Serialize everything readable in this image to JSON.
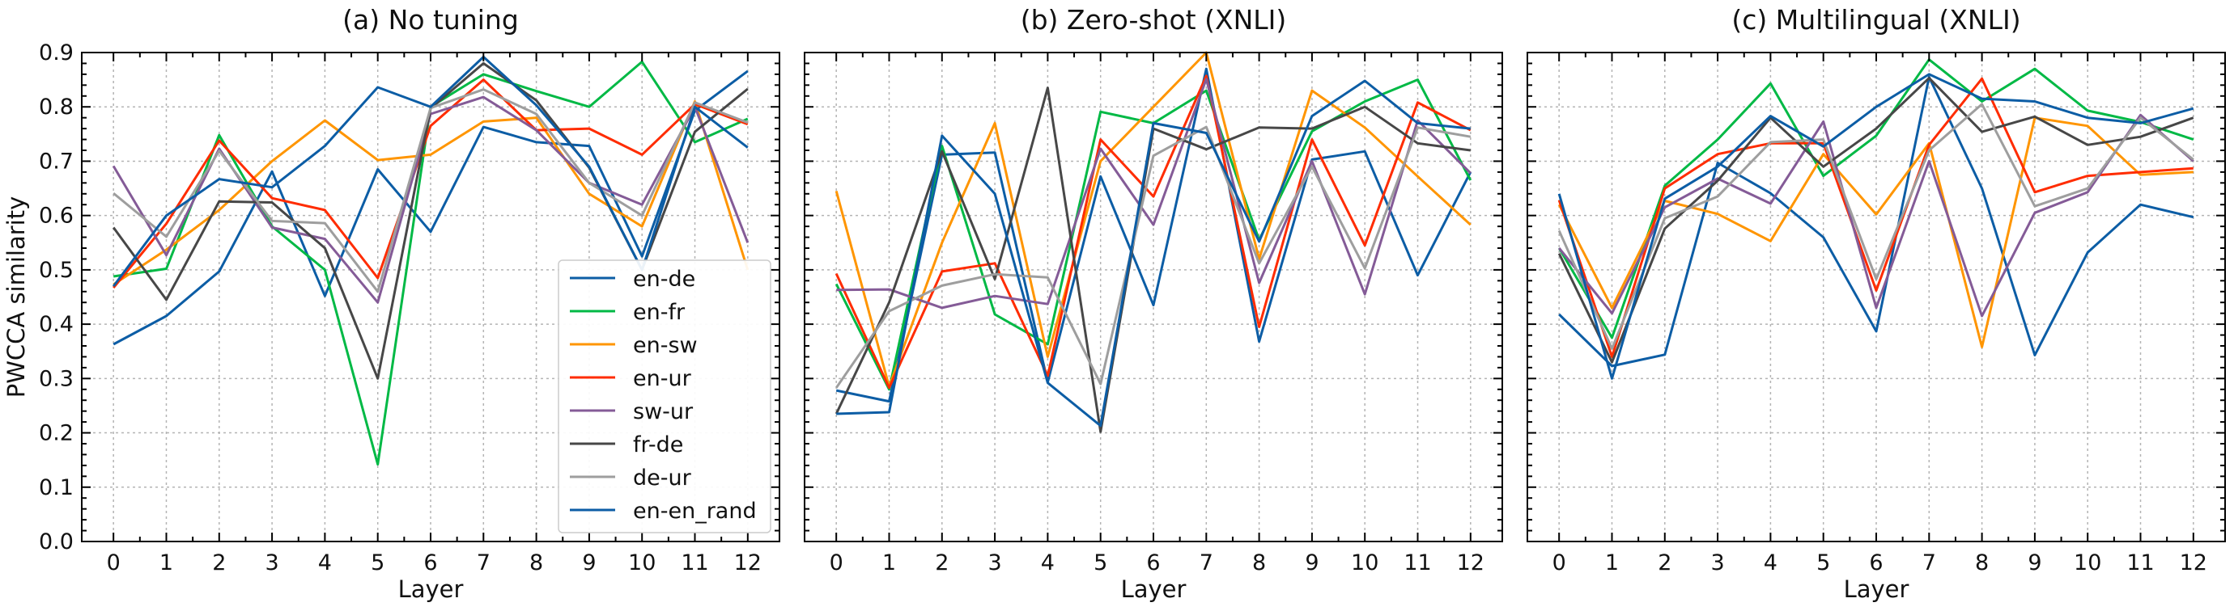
{
  "chart_data": [
    {
      "type": "line",
      "title": "(a) No tuning",
      "xlabel": "Layer",
      "ylabel": "PWCCA similarity",
      "x": [
        0,
        1,
        2,
        3,
        4,
        5,
        6,
        7,
        8,
        9,
        10,
        11,
        12
      ],
      "ylim": [
        0,
        0.9
      ],
      "yticks": [
        "0.0",
        "0.1",
        "0.2",
        "0.3",
        "0.4",
        "0.5",
        "0.6",
        "0.7",
        "0.8",
        "0.9"
      ],
      "grid": true,
      "legend": "lower-right",
      "series": [
        {
          "name": "en-de",
          "color": "#0C5DA5",
          "values": [
            0.363,
            0.415,
            0.497,
            0.681,
            0.452,
            0.685,
            0.57,
            0.763,
            0.735,
            0.728,
            0.525,
            0.793,
            0.866
          ]
        },
        {
          "name": "en-fr",
          "color": "#00B945",
          "values": [
            0.488,
            0.502,
            0.748,
            0.58,
            0.5,
            0.142,
            0.8,
            0.86,
            0.829,
            0.8,
            0.883,
            0.735,
            0.778
          ]
        },
        {
          "name": "en-sw",
          "color": "#FF9500",
          "values": [
            0.473,
            0.537,
            0.61,
            0.7,
            0.775,
            0.702,
            0.712,
            0.773,
            0.78,
            0.64,
            0.58,
            0.81,
            0.5
          ]
        },
        {
          "name": "en-ur",
          "color": "#FF2C00",
          "values": [
            0.467,
            0.585,
            0.738,
            0.632,
            0.61,
            0.485,
            0.765,
            0.85,
            0.757,
            0.76,
            0.712,
            0.805,
            0.768
          ]
        },
        {
          "name": "sw-ur",
          "color": "#845B97",
          "values": [
            0.691,
            0.527,
            0.723,
            0.578,
            0.557,
            0.44,
            0.787,
            0.818,
            0.757,
            0.66,
            0.62,
            0.8,
            0.55
          ]
        },
        {
          "name": "fr-de",
          "color": "#474747",
          "values": [
            0.578,
            0.445,
            0.626,
            0.624,
            0.54,
            0.3,
            0.797,
            0.88,
            0.812,
            0.688,
            0.5,
            0.754,
            0.833
          ]
        },
        {
          "name": "de-ur",
          "color": "#9E9E9E",
          "values": [
            0.641,
            0.561,
            0.719,
            0.59,
            0.586,
            0.46,
            0.798,
            0.832,
            0.787,
            0.66,
            0.6,
            0.808,
            0.771
          ]
        },
        {
          "name": "en-en_rand",
          "color": "#0C5DA5",
          "values": [
            0.47,
            0.6,
            0.667,
            0.652,
            0.728,
            0.836,
            0.8,
            0.892,
            0.803,
            0.69,
            0.5,
            0.8,
            0.725
          ]
        }
      ]
    },
    {
      "type": "line",
      "title": "(b) Zero-shot (XNLI)",
      "xlabel": "Layer",
      "ylabel": "",
      "x": [
        0,
        1,
        2,
        3,
        4,
        5,
        6,
        7,
        8,
        9,
        10,
        11,
        12
      ],
      "ylim": [
        0,
        0.9
      ],
      "yticks": [],
      "grid": true,
      "series": [
        {
          "name": "en-de",
          "color": "#0C5DA5",
          "values": [
            0.278,
            0.258,
            0.712,
            0.716,
            0.293,
            0.672,
            0.435,
            0.87,
            0.368,
            0.703,
            0.718,
            0.49,
            0.68
          ]
        },
        {
          "name": "en-fr",
          "color": "#00B945",
          "values": [
            0.474,
            0.28,
            0.728,
            0.418,
            0.363,
            0.791,
            0.77,
            0.83,
            0.555,
            0.755,
            0.81,
            0.85,
            0.665
          ]
        },
        {
          "name": "en-sw",
          "color": "#FF9500",
          "values": [
            0.645,
            0.285,
            0.55,
            0.77,
            0.34,
            0.7,
            0.8,
            0.9,
            0.52,
            0.83,
            0.762,
            0.672,
            0.583
          ]
        },
        {
          "name": "en-ur",
          "color": "#FF2C00",
          "values": [
            0.493,
            0.283,
            0.497,
            0.512,
            0.305,
            0.74,
            0.635,
            0.857,
            0.395,
            0.74,
            0.545,
            0.808,
            0.757
          ]
        },
        {
          "name": "sw-ur",
          "color": "#845B97",
          "values": [
            0.463,
            0.464,
            0.43,
            0.452,
            0.437,
            0.723,
            0.583,
            0.851,
            0.476,
            0.7,
            0.455,
            0.775,
            0.678
          ]
        },
        {
          "name": "fr-de",
          "color": "#474747",
          "values": [
            0.235,
            0.44,
            0.718,
            0.483,
            0.835,
            0.202,
            0.76,
            0.722,
            0.762,
            0.76,
            0.8,
            0.733,
            0.72
          ]
        },
        {
          "name": "de-ur",
          "color": "#9E9E9E",
          "values": [
            0.283,
            0.424,
            0.471,
            0.492,
            0.486,
            0.29,
            0.71,
            0.763,
            0.512,
            0.69,
            0.503,
            0.762,
            0.745
          ]
        },
        {
          "name": "en-en_rand",
          "color": "#0C5DA5",
          "values": [
            0.235,
            0.238,
            0.747,
            0.64,
            0.292,
            0.213,
            0.77,
            0.752,
            0.552,
            0.783,
            0.848,
            0.77,
            0.76
          ]
        }
      ]
    },
    {
      "type": "line",
      "title": "(c) Multilingual (XNLI)",
      "xlabel": "Layer",
      "ylabel": "",
      "x": [
        0,
        1,
        2,
        3,
        4,
        5,
        6,
        7,
        8,
        9,
        10,
        11,
        12
      ],
      "ylim": [
        0,
        0.9
      ],
      "yticks": [],
      "grid": true,
      "series": [
        {
          "name": "en-de",
          "color": "#0C5DA5",
          "values": [
            0.418,
            0.323,
            0.344,
            0.697,
            0.641,
            0.56,
            0.387,
            0.855,
            0.65,
            0.343,
            0.532,
            0.62,
            0.597
          ]
        },
        {
          "name": "en-fr",
          "color": "#00B945",
          "values": [
            0.54,
            0.375,
            0.655,
            0.74,
            0.843,
            0.673,
            0.747,
            0.887,
            0.81,
            0.87,
            0.793,
            0.772,
            0.74
          ]
        },
        {
          "name": "en-sw",
          "color": "#FF9500",
          "values": [
            0.62,
            0.43,
            0.627,
            0.603,
            0.553,
            0.713,
            0.602,
            0.733,
            0.358,
            0.78,
            0.765,
            0.675,
            0.68
          ]
        },
        {
          "name": "en-ur",
          "color": "#FF2C00",
          "values": [
            0.628,
            0.34,
            0.65,
            0.713,
            0.733,
            0.733,
            0.462,
            0.73,
            0.852,
            0.643,
            0.673,
            0.68,
            0.687
          ]
        },
        {
          "name": "sw-ur",
          "color": "#845B97",
          "values": [
            0.54,
            0.42,
            0.615,
            0.668,
            0.622,
            0.773,
            0.43,
            0.7,
            0.415,
            0.605,
            0.643,
            0.785,
            0.7
          ]
        },
        {
          "name": "fr-de",
          "color": "#474747",
          "values": [
            0.53,
            0.33,
            0.576,
            0.664,
            0.78,
            0.69,
            0.76,
            0.853,
            0.754,
            0.782,
            0.73,
            0.745,
            0.78
          ]
        },
        {
          "name": "de-ur",
          "color": "#9E9E9E",
          "values": [
            0.572,
            0.355,
            0.595,
            0.635,
            0.735,
            0.74,
            0.483,
            0.72,
            0.805,
            0.617,
            0.65,
            0.78,
            0.703
          ]
        },
        {
          "name": "en-en_rand",
          "color": "#0C5DA5",
          "values": [
            0.64,
            0.3,
            0.631,
            0.69,
            0.783,
            0.727,
            0.8,
            0.86,
            0.815,
            0.81,
            0.78,
            0.77,
            0.797
          ]
        }
      ]
    }
  ]
}
